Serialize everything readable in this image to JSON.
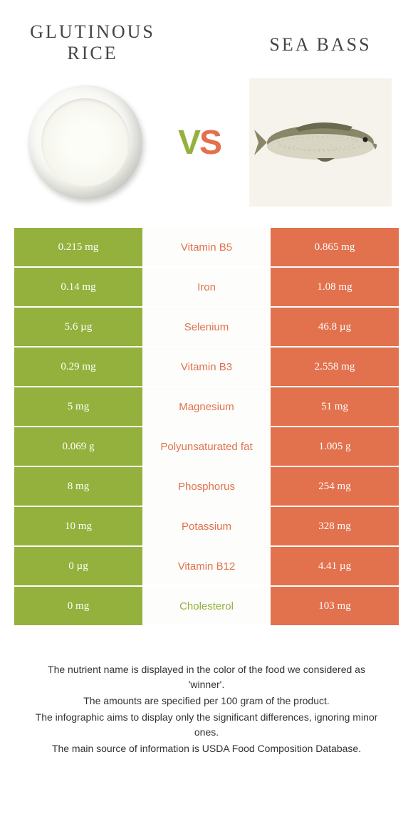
{
  "header": {
    "left_title": "Glutinous rice",
    "right_title": "Sea bass",
    "vs": {
      "v": "V",
      "s": "S"
    }
  },
  "colors": {
    "green": "#94b13d",
    "orange": "#e2714d",
    "row_bg": "#fdfdfb"
  },
  "rows": [
    {
      "left": "0.215 mg",
      "nutrient": "Vitamin B5",
      "right": "0.865 mg",
      "winner": "orange"
    },
    {
      "left": "0.14 mg",
      "nutrient": "Iron",
      "right": "1.08 mg",
      "winner": "orange"
    },
    {
      "left": "5.6 µg",
      "nutrient": "Selenium",
      "right": "46.8 µg",
      "winner": "orange"
    },
    {
      "left": "0.29 mg",
      "nutrient": "Vitamin B3",
      "right": "2.558 mg",
      "winner": "orange"
    },
    {
      "left": "5 mg",
      "nutrient": "Magnesium",
      "right": "51 mg",
      "winner": "orange"
    },
    {
      "left": "0.069 g",
      "nutrient": "Polyunsaturated fat",
      "right": "1.005 g",
      "winner": "orange"
    },
    {
      "left": "8 mg",
      "nutrient": "Phosphorus",
      "right": "254 mg",
      "winner": "orange"
    },
    {
      "left": "10 mg",
      "nutrient": "Potassium",
      "right": "328 mg",
      "winner": "orange"
    },
    {
      "left": "0 µg",
      "nutrient": "Vitamin B12",
      "right": "4.41 µg",
      "winner": "orange"
    },
    {
      "left": "0 mg",
      "nutrient": "Cholesterol",
      "right": "103 mg",
      "winner": "green"
    }
  ],
  "footer": {
    "line1": "The nutrient name is displayed in the color of the food we considered as 'winner'.",
    "line2": "The amounts are specified per 100 gram of the product.",
    "line3": "The infographic aims to display only the significant differences, ignoring minor ones.",
    "line4": "The main source of information is USDA Food Composition Database."
  }
}
